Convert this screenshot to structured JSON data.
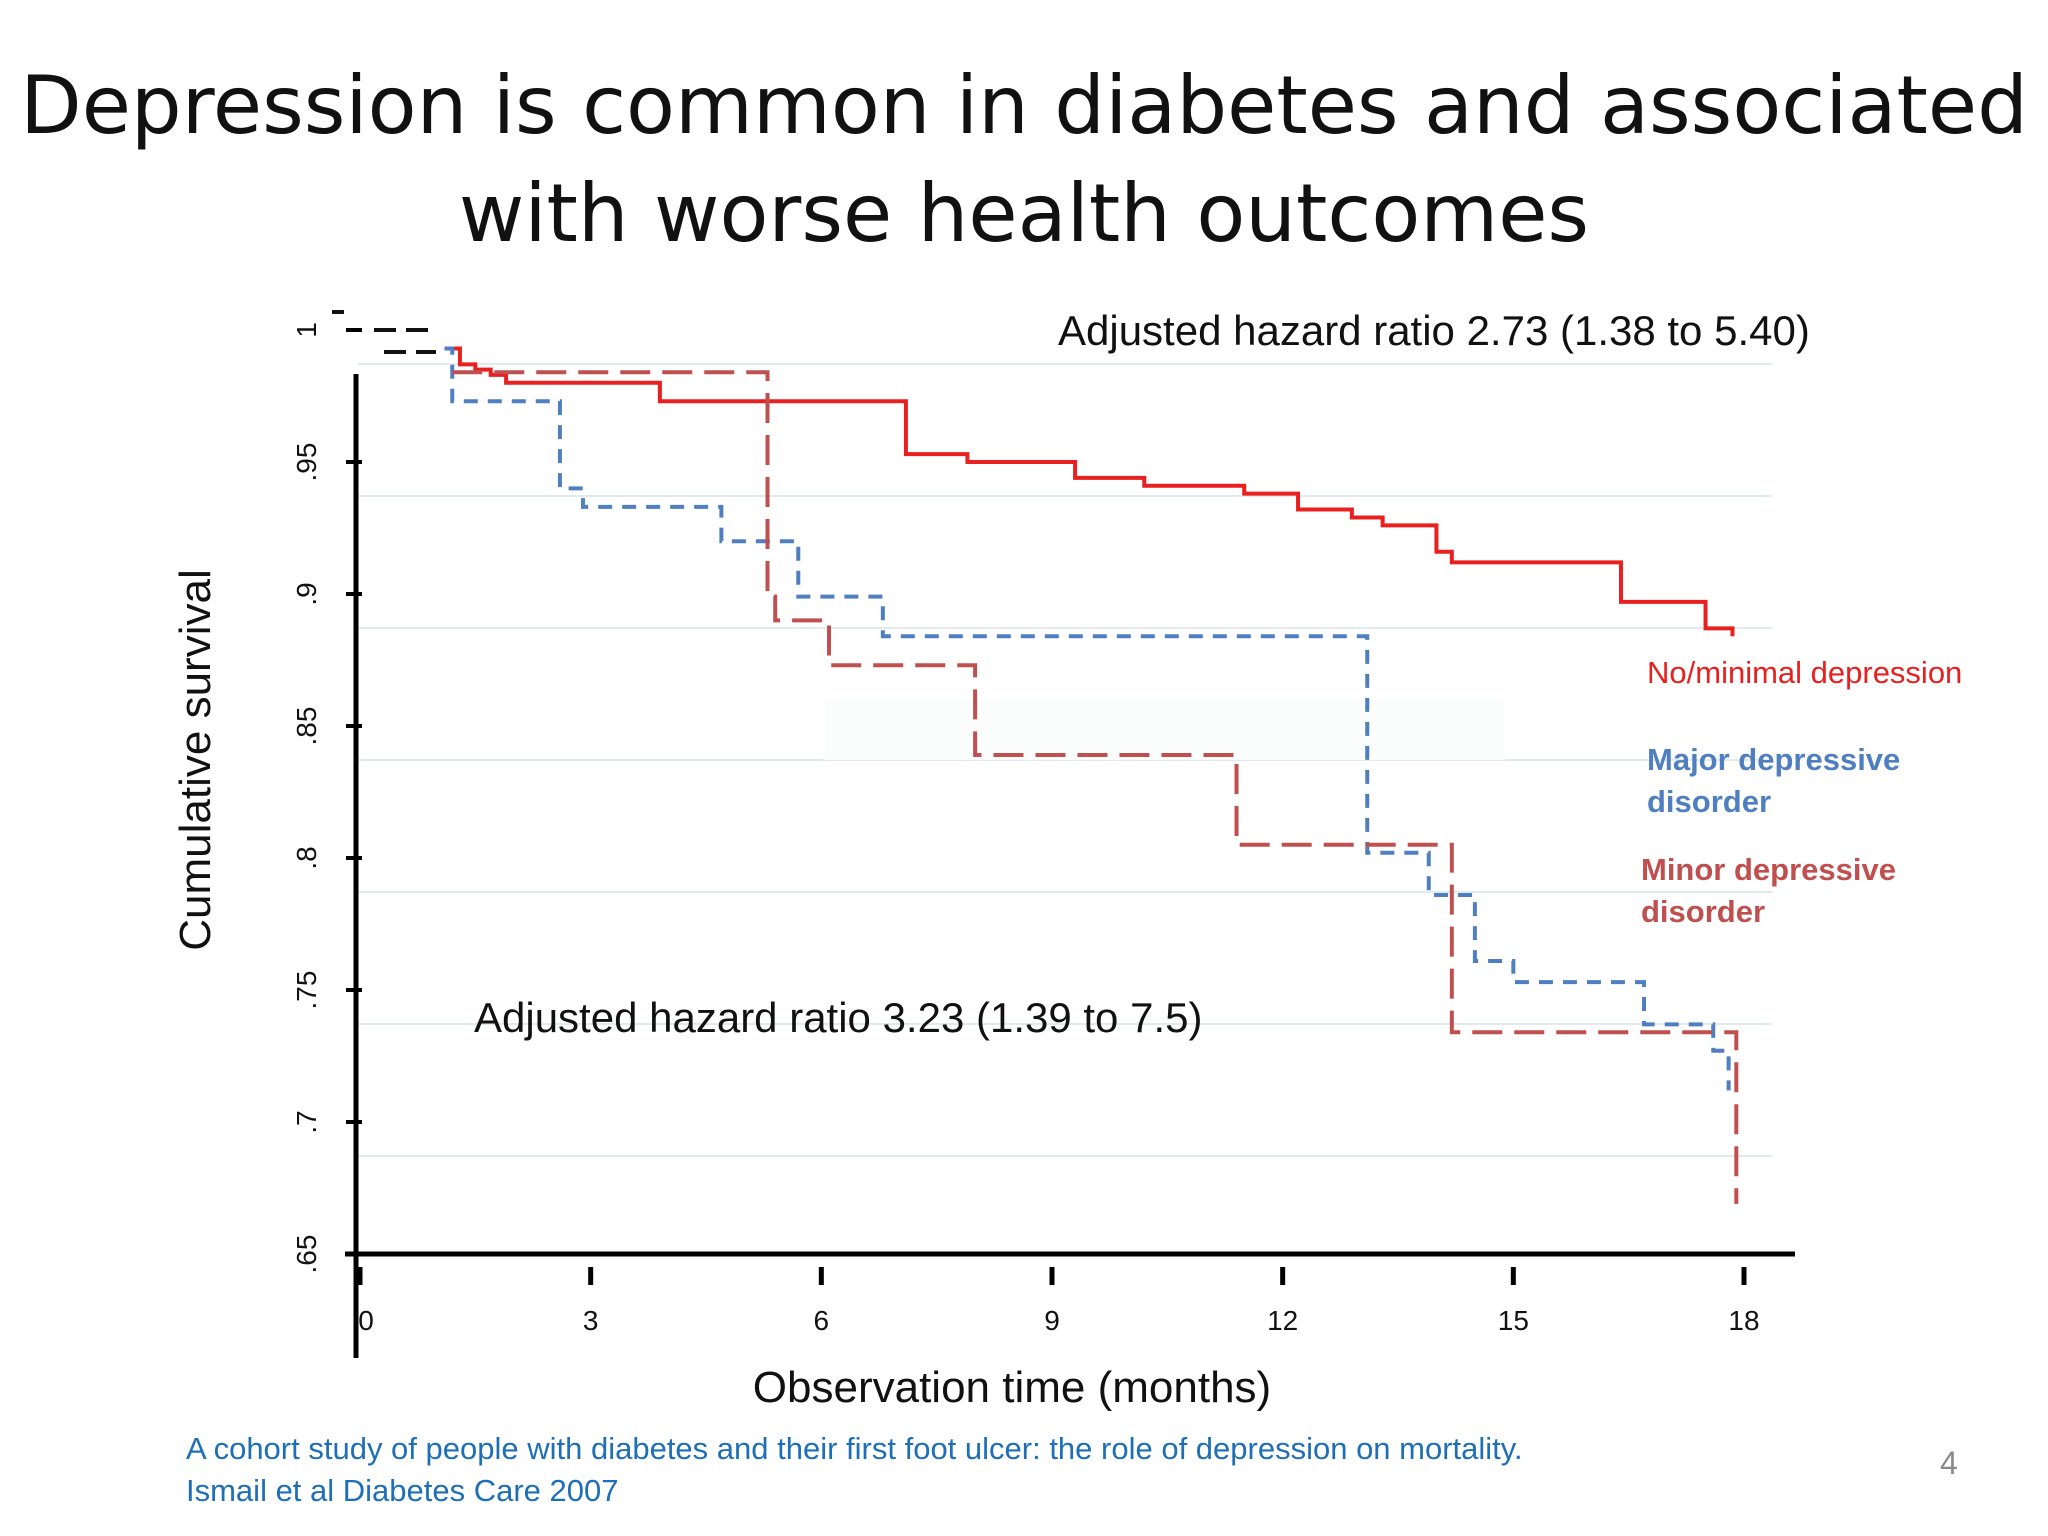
{
  "slide": {
    "title_line1": "Depression is common in diabetes and associated",
    "title_line2": "with worse health outcomes",
    "citation_line1": "A cohort study of people with diabetes and their first foot ulcer: the role of depression on mortality.",
    "citation_line2": "Ismail et al Diabetes Care 2007",
    "page_number": "4"
  },
  "chart_data": {
    "type": "line",
    "subtype": "kaplan-meier step survival curve",
    "xlabel": "Observation time (months)",
    "ylabel": "Cumulative survival",
    "xlim": [
      0,
      18
    ],
    "ylim": [
      0.65,
      1.0
    ],
    "x_ticks": [
      0,
      3,
      6,
      9,
      12,
      15,
      18
    ],
    "x_tick_labels": [
      "0",
      "3",
      "6",
      "9",
      "12",
      "15",
      "18"
    ],
    "y_ticks": [
      0.65,
      0.7,
      0.75,
      0.8,
      0.85,
      0.9,
      0.95,
      1.0
    ],
    "y_tick_labels": [
      ".65",
      ".7",
      ".75",
      ".8",
      ".85",
      ".9",
      ".95",
      "1"
    ],
    "grid": "horizontal",
    "annotations": [
      {
        "text": "Adjusted hazard ratio 2.73 (1.38 to 5.40)",
        "anchor": "top-right"
      },
      {
        "text": "Adjusted hazard ratio 3.23 (1.39 to 7.5)",
        "anchor": "lower-left"
      }
    ],
    "series": [
      {
        "name": "No/minimal depression",
        "label_lines": [
          "No/minimal depression"
        ],
        "color": "#e8201f",
        "style": "solid",
        "points": [
          [
            1.1,
            0.993
          ],
          [
            1.3,
            0.987
          ],
          [
            1.5,
            0.985
          ],
          [
            1.7,
            0.983
          ],
          [
            1.9,
            0.98
          ],
          [
            3.9,
            0.973
          ],
          [
            7.1,
            0.953
          ],
          [
            7.9,
            0.95
          ],
          [
            9.3,
            0.944
          ],
          [
            10.2,
            0.941
          ],
          [
            11.5,
            0.938
          ],
          [
            12.2,
            0.932
          ],
          [
            12.9,
            0.929
          ],
          [
            13.3,
            0.926
          ],
          [
            14.0,
            0.916
          ],
          [
            14.2,
            0.912
          ],
          [
            16.4,
            0.897
          ],
          [
            17.5,
            0.887
          ],
          [
            17.85,
            0.884
          ]
        ]
      },
      {
        "name": "Major depressive disorder",
        "label_lines": [
          "Major depressive",
          "disorder"
        ],
        "color": "#4f7fc0",
        "style": "short-dash",
        "points": [
          [
            1.1,
            0.993
          ],
          [
            1.2,
            0.973
          ],
          [
            2.6,
            0.94
          ],
          [
            2.9,
            0.933
          ],
          [
            4.7,
            0.92
          ],
          [
            5.7,
            0.899
          ],
          [
            6.8,
            0.884
          ],
          [
            13.1,
            0.802
          ],
          [
            13.9,
            0.786
          ],
          [
            14.5,
            0.761
          ],
          [
            15.0,
            0.753
          ],
          [
            16.7,
            0.737
          ],
          [
            17.6,
            0.727
          ],
          [
            17.8,
            0.712
          ]
        ]
      },
      {
        "name": "Minor depressive disorder",
        "label_lines": [
          "Minor depressive",
          "disorder"
        ],
        "color": "#c04f4f",
        "style": "long-dash",
        "points": [
          [
            1.2,
            0.984
          ],
          [
            5.3,
            0.899
          ],
          [
            5.4,
            0.89
          ],
          [
            6.1,
            0.873
          ],
          [
            8.0,
            0.839
          ],
          [
            11.4,
            0.805
          ],
          [
            14.2,
            0.734
          ],
          [
            17.9,
            0.669
          ]
        ]
      }
    ],
    "tick_color": "#000000",
    "axis_color": "#000000",
    "grid_color": "#e1ebee"
  }
}
